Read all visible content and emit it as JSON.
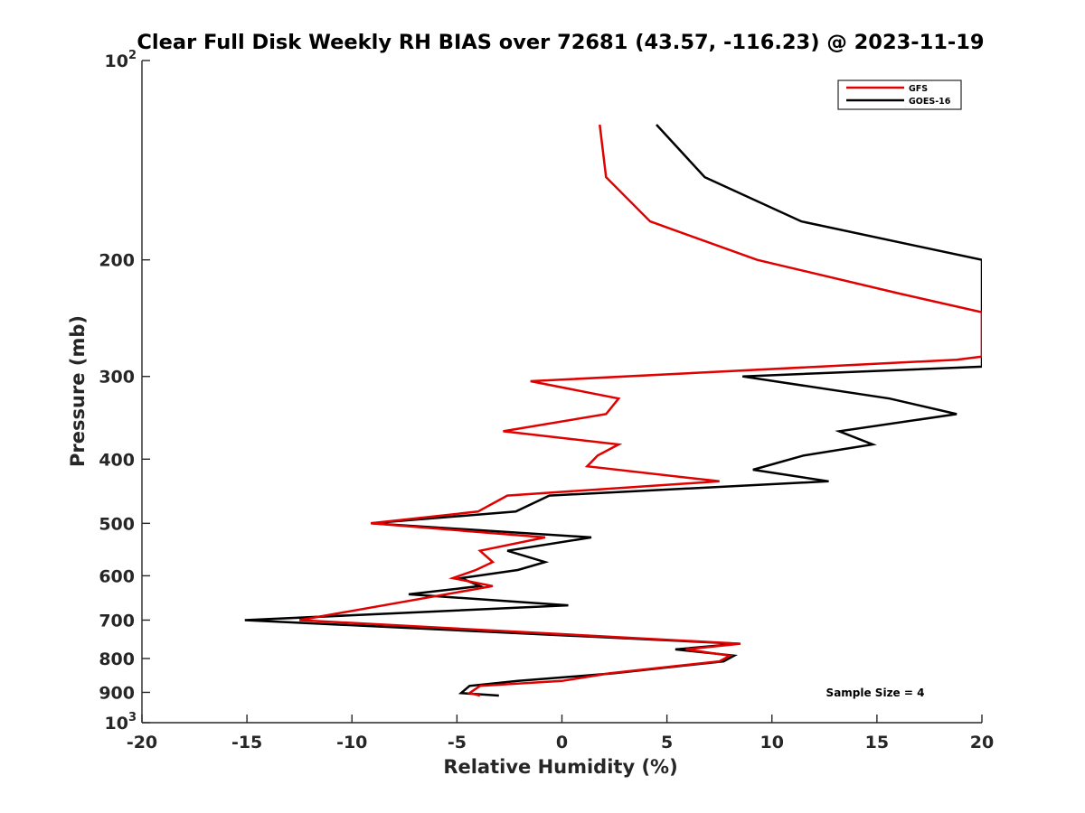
{
  "chart_data": {
    "type": "line",
    "title": "Clear Full Disk Weekly RH BIAS over 72681 (43.57, -116.23) @ 2023-11-19",
    "xlabel": "Relative Humidity (%)",
    "ylabel": "Pressure (mb)",
    "xlim": [
      -20,
      20
    ],
    "ylim": [
      100,
      1000
    ],
    "y_scale": "log",
    "y_reversed": true,
    "grid": false,
    "legend_position": "top-right",
    "x_ticks": [
      "-20",
      "-15",
      "-10",
      "-5",
      "0",
      "5",
      "10",
      "15",
      "20"
    ],
    "y_ticks": [
      {
        "base": "10",
        "exp": "2",
        "value": 100
      },
      {
        "base": "200",
        "exp": "",
        "value": 200
      },
      {
        "base": "300",
        "exp": "",
        "value": 300
      },
      {
        "base": "400",
        "exp": "",
        "value": 400
      },
      {
        "base": "500",
        "exp": "",
        "value": 500
      },
      {
        "base": "600",
        "exp": "",
        "value": 600
      },
      {
        "base": "700",
        "exp": "",
        "value": 700
      },
      {
        "base": "800",
        "exp": "",
        "value": 800
      },
      {
        "base": "900",
        "exp": "",
        "value": 900
      },
      {
        "base": "10",
        "exp": "3",
        "value": 1000
      }
    ],
    "annotation": "Sample Size = 4",
    "series": [
      {
        "name": "GFS",
        "color": "#e00000",
        "points": [
          [
            1.8,
            125
          ],
          [
            2.1,
            150
          ],
          [
            4.2,
            175
          ],
          [
            9.3,
            200
          ],
          [
            16.1,
            225
          ],
          [
            20.0,
            240
          ],
          [
            20.0,
            280
          ],
          [
            18.8,
            283
          ],
          [
            -1.5,
            305
          ],
          [
            2.7,
            324
          ],
          [
            2.1,
            342
          ],
          [
            -2.8,
            363
          ],
          [
            2.7,
            380
          ],
          [
            1.7,
            395
          ],
          [
            1.2,
            410
          ],
          [
            7.5,
            432
          ],
          [
            -2.6,
            454
          ],
          [
            -4.0,
            480
          ],
          [
            -9.1,
            500
          ],
          [
            -0.8,
            525
          ],
          [
            -3.9,
            550
          ],
          [
            -3.3,
            572
          ],
          [
            -4.1,
            588
          ],
          [
            -5.2,
            605
          ],
          [
            -3.3,
            622
          ],
          [
            -12.5,
            700
          ],
          [
            8.5,
            760
          ],
          [
            5.9,
            775
          ],
          [
            8.0,
            792
          ],
          [
            7.5,
            808
          ],
          [
            2.3,
            842
          ],
          [
            0.0,
            865
          ],
          [
            -3.9,
            880
          ],
          [
            -4.4,
            902
          ],
          [
            -3.9,
            910
          ]
        ]
      },
      {
        "name": "GOES-16",
        "color": "#000000",
        "points": [
          [
            4.5,
            125
          ],
          [
            6.8,
            150
          ],
          [
            11.4,
            175
          ],
          [
            20.0,
            200
          ],
          [
            20.0,
            290
          ],
          [
            8.6,
            300
          ],
          [
            15.6,
            324
          ],
          [
            18.8,
            342
          ],
          [
            13.2,
            363
          ],
          [
            14.8,
            380
          ],
          [
            11.5,
            395
          ],
          [
            9.1,
            415
          ],
          [
            12.7,
            432
          ],
          [
            -0.6,
            454
          ],
          [
            -2.2,
            480
          ],
          [
            -9.1,
            500
          ],
          [
            1.4,
            525
          ],
          [
            -2.6,
            550
          ],
          [
            -0.8,
            572
          ],
          [
            -2.1,
            588
          ],
          [
            -4.8,
            605
          ],
          [
            -3.9,
            622
          ],
          [
            -7.3,
            640
          ],
          [
            0.3,
            665
          ],
          [
            -9.9,
            688
          ],
          [
            -15.1,
            700
          ],
          [
            8.4,
            760
          ],
          [
            5.4,
            775
          ],
          [
            8.2,
            792
          ],
          [
            7.7,
            808
          ],
          [
            2.5,
            842
          ],
          [
            -2.1,
            865
          ],
          [
            -4.4,
            880
          ],
          [
            -4.8,
            902
          ],
          [
            -3.0,
            910
          ]
        ]
      }
    ]
  }
}
